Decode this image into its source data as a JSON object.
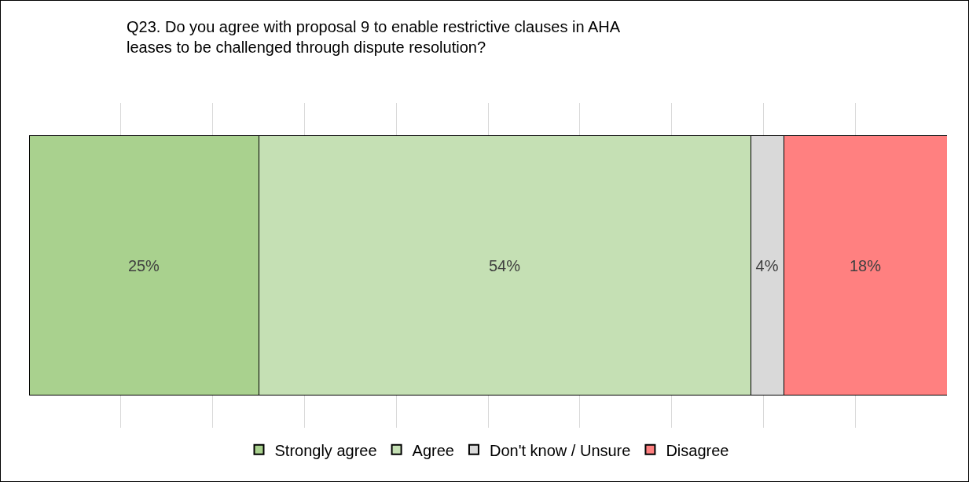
{
  "chart_data": {
    "type": "bar",
    "orientation": "horizontal",
    "stacked": true,
    "title": "Q23. Do you agree with proposal 9 to enable restrictive clauses in AHA\nleases to be challenged through dispute resolution?",
    "categories": [
      null
    ],
    "series": [
      {
        "name": "Strongly agree",
        "color": "#a9d18e",
        "values": [
          25
        ],
        "value_labels": [
          "25%"
        ]
      },
      {
        "name": "Agree",
        "color": "#c5e0b4",
        "values": [
          53.6
        ],
        "value_labels": [
          "54%"
        ]
      },
      {
        "name": "Don't know / Unsure",
        "color": "#d9d9d9",
        "values": [
          3.6
        ],
        "value_labels": [
          "4%"
        ]
      },
      {
        "name": "Disagree",
        "color": "#ff8080",
        "values": [
          17.8
        ],
        "value_labels": [
          "18%"
        ]
      }
    ],
    "xlim": [
      0,
      100
    ],
    "xticks": [
      {
        "value": 10,
        "label": null
      },
      {
        "value": 20,
        "label": null
      },
      {
        "value": 30,
        "label": null
      },
      {
        "value": 40,
        "label": null
      },
      {
        "value": 50,
        "label": null
      },
      {
        "value": 60,
        "label": null
      },
      {
        "value": 70,
        "label": null
      },
      {
        "value": 80,
        "label": null
      },
      {
        "value": 90,
        "label": null
      }
    ],
    "grid": "x",
    "legend": "bottom"
  }
}
